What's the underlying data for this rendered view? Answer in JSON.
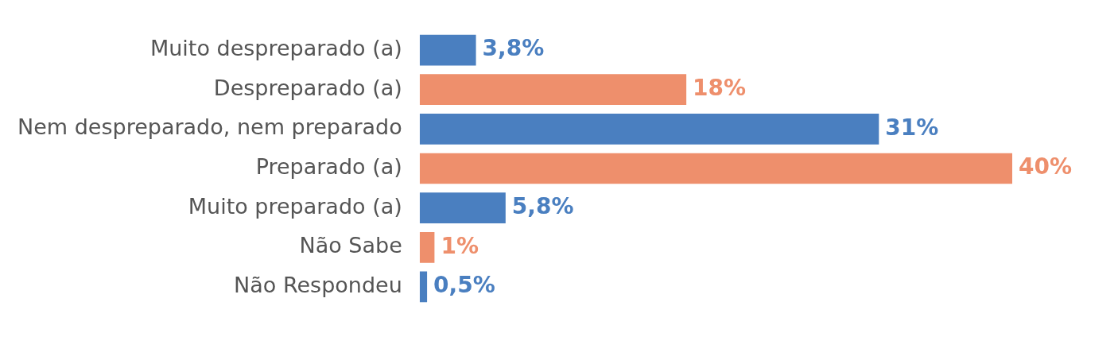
{
  "chart_data": {
    "type": "bar",
    "orientation": "horizontal",
    "categories": [
      "Muito despreparado (a)",
      "Despreparado (a)",
      "Nem despreparado, nem preparado",
      "Preparado (a)",
      "Muito preparado (a)",
      "Não Sabe",
      "Não Respondeu"
    ],
    "values": [
      3.8,
      18,
      31,
      40,
      5.8,
      1,
      0.5
    ],
    "colors": [
      "#4a7fc0",
      "#ee8f6c",
      "#4a7fc0",
      "#ee8f6c",
      "#4a7fc0",
      "#ee8f6c",
      "#4a7fc0"
    ],
    "value_labels": [
      "3,8%",
      "18%",
      "31%",
      "40%",
      "5,8%",
      "1%",
      "0,5%"
    ],
    "legend": false
  }
}
